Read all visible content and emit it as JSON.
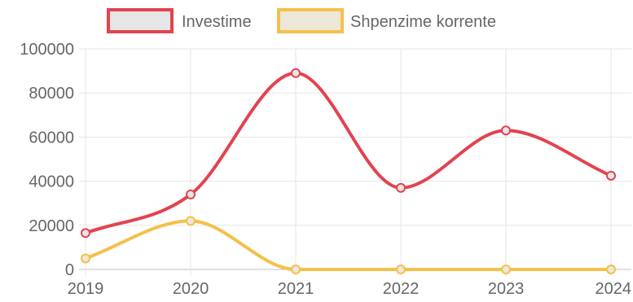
{
  "chart_data": {
    "type": "line",
    "x": [
      "2019",
      "2020",
      "2021",
      "2022",
      "2023",
      "2024"
    ],
    "series": [
      {
        "name": "Investime",
        "values": [
          16500,
          34000,
          89000,
          37000,
          63000,
          42500
        ],
        "color": "#e2434f",
        "fill": "#e6e6e6"
      },
      {
        "name": "Shpenzime korrente",
        "values": [
          5000,
          22000,
          0,
          0,
          0,
          0
        ],
        "color": "#f5c04a",
        "fill": "#ece8d8"
      }
    ],
    "y_ticks": [
      "100000",
      "80000",
      "60000",
      "40000",
      "20000",
      "0"
    ],
    "ylim": [
      0,
      100000
    ],
    "grid": true,
    "legend_position": "top-center",
    "curve": "smooth"
  }
}
